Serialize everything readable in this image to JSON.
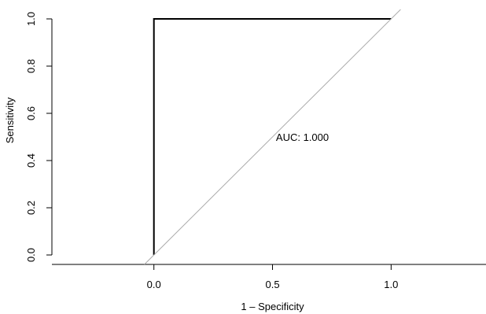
{
  "chart_data": {
    "type": "line",
    "xlabel": "1 – Specificity",
    "ylabel": "Sensitivity",
    "xlim": [
      -0.43,
      1.4
    ],
    "ylim": [
      -0.04,
      1.03
    ],
    "x_axis_visible_range": [
      -0.43,
      1.4
    ],
    "x_ticks": [
      0.0,
      0.5,
      1.0
    ],
    "x_tick_labels": [
      "0.0",
      "0.5",
      "1.0"
    ],
    "y_ticks": [
      0.0,
      0.2,
      0.4,
      0.6,
      0.8,
      1.0
    ],
    "y_tick_labels": [
      "0.0",
      "0.2",
      "0.4",
      "0.6",
      "0.8",
      "1.0"
    ],
    "grid": false,
    "series": [
      {
        "color": "#000000",
        "points": [
          {
            "x": 0.0,
            "y": 0.0
          },
          {
            "x": 0.0,
            "y": 1.0
          },
          {
            "x": 1.0,
            "y": 1.0
          }
        ]
      },
      {
        "color": "#aaaaaa",
        "reference_line": true,
        "points": [
          {
            "x": -0.04,
            "y": -0.04
          },
          {
            "x": 1.04,
            "y": 1.04
          }
        ]
      }
    ],
    "annotation": {
      "text": "AUC: 1.000",
      "x": 0.5,
      "y": 0.5
    }
  }
}
